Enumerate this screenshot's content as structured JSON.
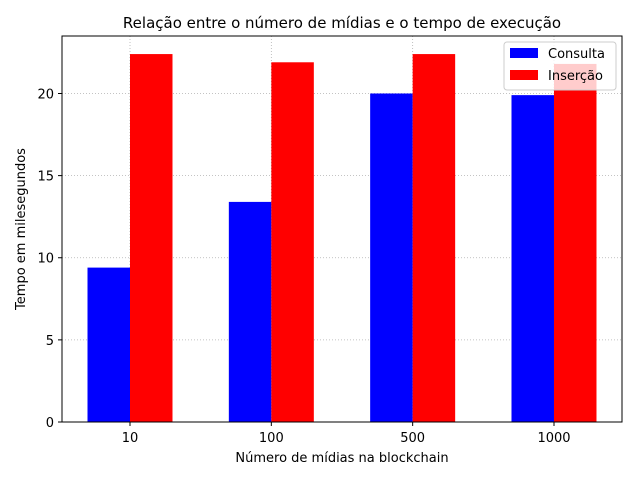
{
  "chart_data": {
    "type": "bar",
    "title": "Relação entre o número de mídias e o tempo de execução",
    "xlabel": "Número de mídias na blockchain",
    "ylabel": "Tempo em milesegundos",
    "categories": [
      "10",
      "100",
      "500",
      "1000"
    ],
    "series": [
      {
        "name": "Consulta",
        "color": "#0000ff",
        "values": [
          9.4,
          13.4,
          20.0,
          19.9
        ]
      },
      {
        "name": "Inserção",
        "color": "#ff0000",
        "values": [
          22.4,
          21.9,
          22.4,
          21.8
        ]
      }
    ],
    "ylim": [
      0,
      23.5
    ],
    "yticks": [
      0,
      5,
      10,
      15,
      20
    ],
    "grid": true,
    "legend": "top-right"
  }
}
